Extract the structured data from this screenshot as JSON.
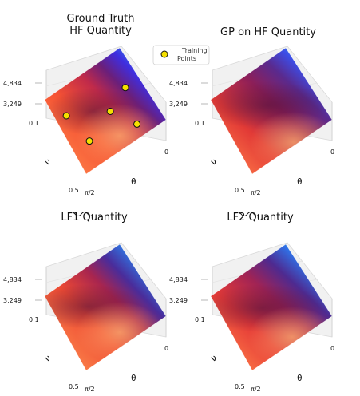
{
  "chart_data": [
    {
      "type": "surface",
      "title_lines": [
        "Ground Truth",
        "HF Quantity"
      ],
      "xlabel": "θ",
      "ylabel": "ν",
      "x_ticks": [
        "0",
        "π/2"
      ],
      "y_ticks": [
        "0.1",
        "0.5"
      ],
      "z_ticks": [
        "3,249",
        "4,834"
      ],
      "legend": {
        "label_lines": [
          "Training",
          "Points"
        ],
        "marker_color": "#f5e000"
      },
      "training_points": [
        {
          "theta_frac": 0.12,
          "nu_frac": 0.3
        },
        {
          "theta_frac": 0.2,
          "nu_frac": 0.7
        },
        {
          "theta_frac": 0.55,
          "nu_frac": 0.55
        },
        {
          "theta_frac": 0.82,
          "nu_frac": 0.42
        },
        {
          "theta_frac": 0.72,
          "nu_frac": 0.85
        }
      ]
    },
    {
      "type": "surface",
      "title_lines": [
        "GP on HF Quantity"
      ],
      "xlabel": "θ",
      "ylabel": "ν",
      "x_ticks": [
        "0",
        "π/2"
      ],
      "y_ticks": [
        "0.1",
        "0.5"
      ],
      "z_ticks": [
        "3,249",
        "4,834"
      ]
    },
    {
      "type": "surface",
      "title_lines": [
        "LF1 Quantity"
      ],
      "title_tilde": "LF1",
      "title_suffix": " Quantity",
      "xlabel": "θ",
      "ylabel": "ν",
      "x_ticks": [
        "0",
        "π/2"
      ],
      "y_ticks": [
        "0.1",
        "0.5"
      ],
      "z_ticks": [
        "3,249",
        "4,834"
      ]
    },
    {
      "type": "surface",
      "title_lines": [
        "LF2 Quantity"
      ],
      "title_tilde": "LF2",
      "title_suffix": " Quantity",
      "xlabel": "θ",
      "ylabel": "ν",
      "x_ticks": [
        "0",
        "π/2"
      ],
      "y_ticks": [
        "0.1",
        "0.5"
      ],
      "z_ticks": [
        "3,249",
        "4,834"
      ]
    }
  ]
}
